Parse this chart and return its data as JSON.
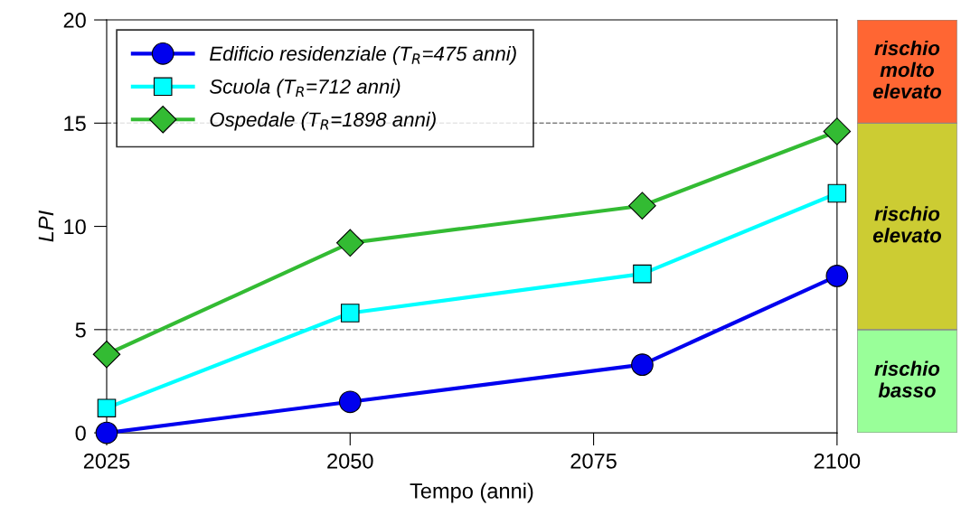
{
  "chart_data": [
    {
      "type": "line",
      "xlabel": "Tempo (anni)",
      "ylabel": "LPI",
      "x": [
        2025,
        2050,
        2080,
        2100
      ],
      "series": [
        {
          "name": "Edificio residenziale (T$_{R}$=475 anni)",
          "color": "#0000ee",
          "marker": "circle",
          "values": [
            0,
            1.5,
            3.3,
            7.6
          ]
        },
        {
          "name": "Scuola (T$_{R}$=712 anni)",
          "color": "#00ffff",
          "marker": "square",
          "values": [
            1.2,
            5.8,
            7.7,
            11.6
          ]
        },
        {
          "name": "Ospedale (T$_{R}$=1898 anni)",
          "color": "#33bb33",
          "marker": "diamond",
          "values": [
            3.8,
            9.2,
            11.0,
            14.6
          ]
        }
      ],
      "xlim": [
        2025,
        2100
      ],
      "xticks": [
        2025,
        2050,
        2075,
        2100
      ],
      "ylim": [
        0,
        20
      ],
      "yticks": [
        0,
        5,
        10,
        15,
        20
      ],
      "ref_lines": [
        {
          "axis": "y",
          "value": 5,
          "label": null,
          "color": "#808080",
          "line_style": "dashed"
        },
        {
          "axis": "y",
          "value": 15,
          "label": null,
          "color": "#808080",
          "line_style": "dashed"
        }
      ],
      "legend": "top left",
      "line_style": "solid"
    },
    {
      "type": "bar",
      "stacked": true,
      "categories": [
        null
      ],
      "series": [
        {
          "name": "rischio\nbasso",
          "color": "#99ff99",
          "values": [
            5
          ]
        },
        {
          "name": "rischio\nelevato",
          "color": "#cccc33",
          "values": [
            10
          ]
        },
        {
          "name": "rischio\nmolto\nelevato",
          "color": "#ff6633",
          "values": [
            5
          ]
        }
      ],
      "ylim": [
        0,
        20
      ],
      "tick_labels": false
    }
  ]
}
